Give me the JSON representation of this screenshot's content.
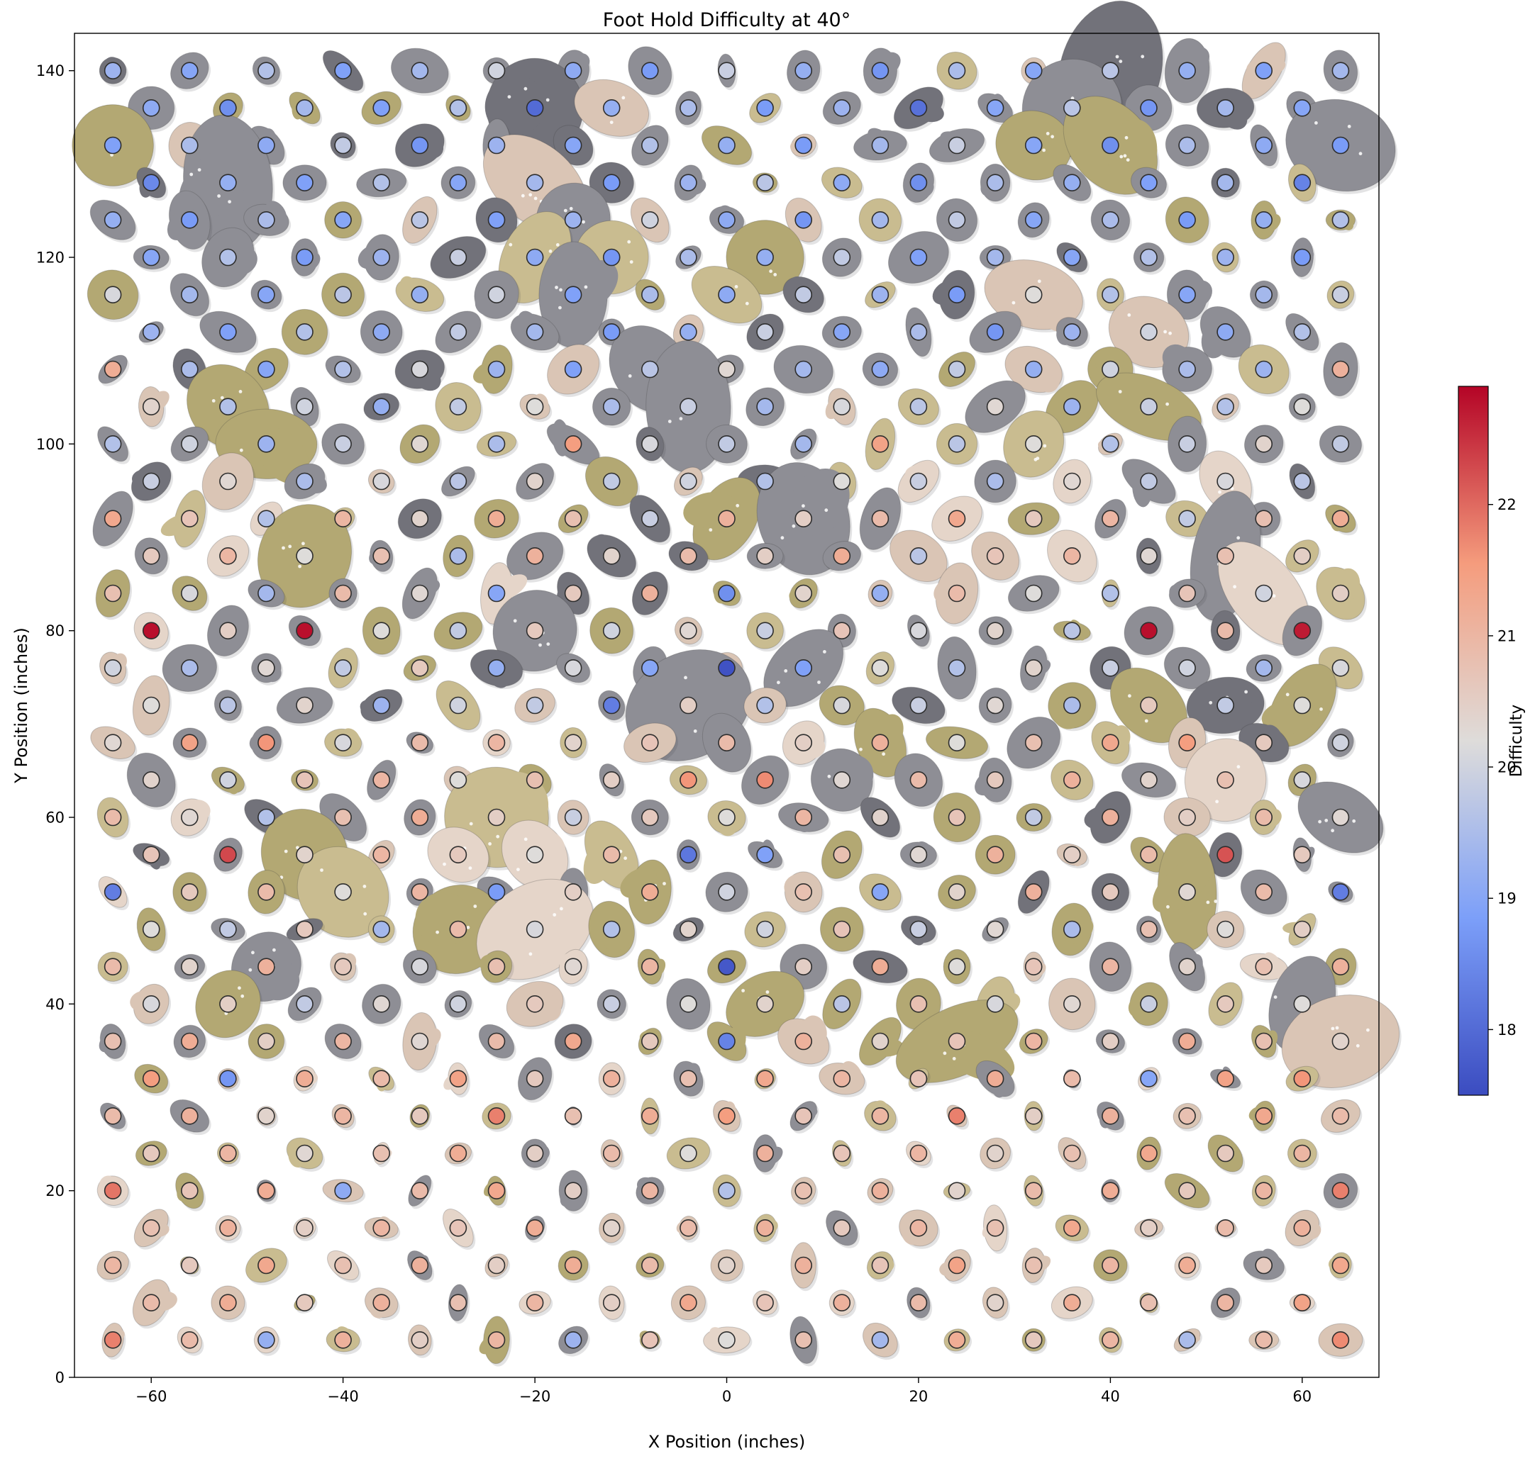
{
  "chart_data": {
    "type": "scatter",
    "title": "Foot Hold Difficulty at 40°",
    "xlabel": "X Position (inches)",
    "ylabel": "Y Position (inches)",
    "xlim": [
      -68,
      68
    ],
    "ylim": [
      0,
      144
    ],
    "x_ticks": [
      -60,
      -40,
      -20,
      0,
      20,
      40,
      60
    ],
    "y_ticks": [
      0,
      20,
      40,
      60,
      80,
      100,
      120,
      140
    ],
    "grid": false,
    "legend_position": "none",
    "colorbar": {
      "label": "Difficulty",
      "ticks": [
        18,
        19,
        20,
        21,
        22
      ],
      "vmin": 17.5,
      "vmax": 22.9
    },
    "colormap": {
      "name": "coolwarm",
      "stops": [
        [
          0,
          "#3b4cc0"
        ],
        [
          0.25,
          "#7c9ff9"
        ],
        [
          0.5,
          "#dedcda"
        ],
        [
          0.75,
          "#f59c7d"
        ],
        [
          1,
          "#b40426"
        ]
      ]
    },
    "hold_colors": [
      "#8e8e95",
      "#72727a",
      "#b3a873",
      "#c9bc90",
      "#dac5b5",
      "#e5d5c9"
    ],
    "rows": [
      {
        "y": 140,
        "x_start": -64,
        "x_step": 8,
        "difficulty": [
          19.3,
          19.0,
          19.6,
          18.9,
          19.4,
          20.0,
          19.1,
          18.8,
          19.9,
          19.2,
          18.7,
          19.5,
          19.0,
          19.7,
          19.2,
          18.9,
          19.4
        ]
      },
      {
        "y": 136,
        "x_start": -60,
        "x_step": 8,
        "difficulty": [
          19.1,
          18.6,
          19.4,
          18.9,
          19.6,
          18.0,
          19.2,
          19.5,
          18.8,
          19.3,
          18.1,
          19.0,
          19.7,
          18.7,
          19.4,
          19.0
        ]
      },
      {
        "y": 132,
        "x_start": -64,
        "x_step": 8,
        "difficulty": [
          18.9,
          19.5,
          19.1,
          19.8,
          18.7,
          19.3,
          19.0,
          19.6,
          19.2,
          18.8,
          19.4,
          19.9,
          19.0,
          18.6,
          19.5,
          19.1,
          18.8
        ]
      },
      {
        "y": 128,
        "x_start": -60,
        "x_step": 8,
        "difficulty": [
          18.5,
          19.2,
          18.9,
          19.6,
          19.0,
          19.4,
          18.8,
          19.3,
          19.7,
          19.1,
          18.6,
          19.5,
          19.2,
          18.9,
          19.4,
          18.4
        ]
      },
      {
        "y": 124,
        "x_start": -64,
        "x_step": 8,
        "difficulty": [
          19.2,
          18.8,
          19.5,
          19.0,
          19.7,
          18.9,
          19.3,
          20.0,
          19.1,
          18.7,
          19.4,
          19.8,
          19.0,
          19.5,
          18.8,
          19.2,
          19.6
        ]
      },
      {
        "y": 120,
        "x_start": -60,
        "x_step": 8,
        "difficulty": [
          19.0,
          19.6,
          18.8,
          19.3,
          19.9,
          19.1,
          18.7,
          19.5,
          19.2,
          19.8,
          18.9,
          19.4,
          19.0,
          19.6,
          19.3,
          18.8
        ]
      },
      {
        "y": 116,
        "x_start": -64,
        "x_step": 8,
        "difficulty": [
          20.1,
          19.4,
          19.0,
          19.7,
          19.2,
          20.0,
          18.9,
          19.5,
          19.1,
          19.8,
          19.3,
          18.8,
          20.2,
          19.6,
          19.0,
          19.4,
          19.9
        ]
      },
      {
        "y": 112,
        "x_start": -60,
        "x_step": 8,
        "difficulty": [
          19.3,
          18.9,
          19.6,
          19.1,
          19.8,
          19.4,
          18.8,
          19.2,
          19.9,
          19.0,
          19.5,
          18.7,
          19.3,
          20.0,
          19.1,
          19.6
        ]
      },
      {
        "y": 108,
        "x_start": -64,
        "x_step": 8,
        "difficulty": [
          21.2,
          19.5,
          19.0,
          19.6,
          20.1,
          19.3,
          18.9,
          19.7,
          20.3,
          19.4,
          19.1,
          19.8,
          19.2,
          20.0,
          19.5,
          19.3,
          21.1
        ]
      },
      {
        "y": 104,
        "x_start": -60,
        "x_step": 8,
        "difficulty": [
          20.4,
          19.6,
          20.0,
          19.2,
          19.8,
          20.2,
          19.5,
          19.9,
          19.4,
          20.1,
          19.7,
          20.3,
          19.3,
          19.9,
          19.6,
          20.2
        ]
      },
      {
        "y": 100,
        "x_start": -64,
        "x_step": 8,
        "difficulty": [
          19.6,
          20.0,
          19.3,
          19.9,
          20.3,
          19.5,
          21.5,
          20.1,
          19.8,
          19.4,
          21.4,
          19.7,
          20.2,
          19.6,
          19.9,
          20.4,
          19.8
        ]
      },
      {
        "y": 96,
        "x_start": -60,
        "x_step": 8,
        "difficulty": [
          19.9,
          20.3,
          19.5,
          20.1,
          19.7,
          20.4,
          19.8,
          20.0,
          19.6,
          20.2,
          19.9,
          19.5,
          20.3,
          19.8,
          20.1,
          19.7
        ]
      },
      {
        "y": 92,
        "x_start": -64,
        "x_step": 8,
        "difficulty": [
          21.3,
          20.7,
          19.6,
          21.0,
          20.4,
          21.2,
          20.8,
          19.9,
          21.1,
          20.5,
          20.9,
          21.3,
          20.6,
          21.0,
          19.8,
          20.8,
          21.2
        ]
      },
      {
        "y": 88,
        "x_start": -60,
        "x_step": 8,
        "difficulty": [
          20.6,
          21.0,
          20.2,
          20.8,
          19.5,
          21.1,
          20.4,
          20.9,
          20.5,
          21.2,
          19.7,
          20.7,
          21.0,
          20.3,
          20.8,
          20.5
        ]
      },
      {
        "y": 84,
        "x_start": -64,
        "x_step": 8,
        "difficulty": [
          20.8,
          20.1,
          19.4,
          20.9,
          20.3,
          19.0,
          20.6,
          21.1,
          18.6,
          20.4,
          19.2,
          20.9,
          20.2,
          19.6,
          20.7,
          20.0,
          20.5
        ]
      },
      {
        "y": 80,
        "x_start": -60,
        "x_step": 8,
        "difficulty": [
          22.8,
          20.5,
          22.8,
          20.2,
          19.8,
          20.6,
          20.0,
          20.3,
          19.9,
          20.7,
          20.1,
          20.4,
          19.7,
          22.8,
          20.9,
          22.7
        ]
      },
      {
        "y": 76,
        "x_start": -64,
        "x_step": 8,
        "difficulty": [
          20.0,
          19.5,
          20.3,
          19.8,
          20.6,
          19.2,
          20.1,
          19.0,
          17.6,
          18.9,
          20.2,
          19.6,
          20.4,
          19.9,
          20.0,
          19.4,
          20.1
        ]
      },
      {
        "y": 72,
        "x_start": -60,
        "x_step": 8,
        "difficulty": [
          20.2,
          19.7,
          20.4,
          19.3,
          20.0,
          19.8,
          18.3,
          20.5,
          19.6,
          20.1,
          19.9,
          20.3,
          19.5,
          20.6,
          19.8,
          20.2
        ]
      },
      {
        "y": 68,
        "x_start": -64,
        "x_step": 8,
        "difficulty": [
          20.3,
          21.4,
          21.6,
          20.1,
          20.9,
          21.0,
          20.4,
          20.7,
          20.9,
          20.5,
          21.1,
          20.2,
          20.8,
          21.3,
          21.5,
          20.6,
          20.0
        ]
      },
      {
        "y": 64,
        "x_start": -60,
        "x_step": 8,
        "difficulty": [
          20.4,
          20.0,
          20.7,
          21.0,
          20.2,
          20.8,
          20.5,
          21.6,
          21.7,
          20.3,
          20.9,
          20.6,
          21.1,
          20.4,
          20.8,
          20.1
        ]
      },
      {
        "y": 60,
        "x_start": -64,
        "x_step": 8,
        "difficulty": [
          20.9,
          20.3,
          19.6,
          20.8,
          21.2,
          20.5,
          19.9,
          20.6,
          20.2,
          21.0,
          20.4,
          20.7,
          19.8,
          21.1,
          20.5,
          20.9,
          20.3
        ]
      },
      {
        "y": 56,
        "x_start": -60,
        "x_step": 8,
        "difficulty": [
          20.7,
          22.3,
          20.4,
          21.0,
          20.6,
          20.2,
          20.9,
          18.2,
          18.9,
          20.8,
          20.3,
          21.1,
          20.5,
          20.9,
          22.2,
          20.6
        ]
      },
      {
        "y": 52,
        "x_start": -64,
        "x_step": 8,
        "difficulty": [
          18.3,
          20.6,
          20.9,
          20.2,
          21.0,
          18.8,
          20.5,
          21.2,
          20.0,
          20.8,
          19.0,
          20.4,
          21.1,
          20.6,
          20.3,
          20.9,
          18.3
        ]
      },
      {
        "y": 48,
        "x_start": -60,
        "x_step": 8,
        "difficulty": [
          20.2,
          19.8,
          20.6,
          19.4,
          20.9,
          20.1,
          19.6,
          20.4,
          20.0,
          20.7,
          19.9,
          20.3,
          19.5,
          20.8,
          20.2,
          20.5
        ]
      },
      {
        "y": 44,
        "x_start": -64,
        "x_step": 8,
        "difficulty": [
          20.9,
          20.4,
          21.1,
          20.6,
          20.1,
          20.8,
          20.3,
          21.0,
          17.7,
          20.5,
          21.2,
          20.2,
          20.7,
          21.0,
          20.4,
          20.8,
          21.1
        ]
      },
      {
        "y": 40,
        "x_start": -60,
        "x_step": 8,
        "difficulty": [
          20.1,
          20.5,
          19.8,
          20.3,
          20.0,
          20.6,
          19.9,
          20.2,
          20.4,
          19.7,
          20.8,
          20.1,
          20.3,
          19.9,
          20.6,
          20.2
        ]
      },
      {
        "y": 36,
        "x_start": -64,
        "x_step": 8,
        "difficulty": [
          20.8,
          21.2,
          20.5,
          21.0,
          20.3,
          20.9,
          21.3,
          20.6,
          18.4,
          21.1,
          20.4,
          20.7,
          21.0,
          20.5,
          21.2,
          20.8,
          20.4
        ]
      },
      {
        "y": 32,
        "x_start": -60,
        "x_step": 8,
        "difficulty": [
          21.5,
          18.7,
          21.2,
          20.9,
          21.4,
          20.6,
          21.1,
          20.8,
          21.3,
          21.0,
          20.7,
          21.2,
          20.9,
          19.0,
          21.4,
          21.6
        ]
      },
      {
        "y": 28,
        "x_start": -64,
        "x_step": 8,
        "difficulty": [
          20.9,
          21.1,
          20.4,
          21.0,
          20.6,
          21.8,
          20.8,
          21.2,
          21.5,
          20.7,
          21.0,
          21.8,
          20.5,
          21.1,
          20.8,
          21.3,
          20.9
        ]
      },
      {
        "y": 24,
        "x_start": -60,
        "x_step": 8,
        "difficulty": [
          20.6,
          21.0,
          20.3,
          20.8,
          21.2,
          20.5,
          20.9,
          20.2,
          21.1,
          20.7,
          21.0,
          20.4,
          20.8,
          21.3,
          20.6,
          21.0
        ]
      },
      {
        "y": 20,
        "x_start": -64,
        "x_step": 8,
        "difficulty": [
          21.9,
          20.7,
          21.2,
          19.1,
          20.9,
          21.3,
          20.5,
          21.0,
          19.6,
          20.8,
          21.1,
          20.4,
          20.9,
          21.2,
          20.6,
          21.0,
          21.8
        ]
      },
      {
        "y": 16,
        "x_start": -60,
        "x_step": 8,
        "difficulty": [
          20.8,
          21.1,
          20.5,
          21.0,
          20.7,
          21.2,
          20.4,
          20.9,
          21.1,
          20.6,
          21.0,
          20.8,
          21.3,
          20.5,
          20.9,
          21.1
        ]
      },
      {
        "y": 12,
        "x_start": -64,
        "x_step": 8,
        "difficulty": [
          21.0,
          20.6,
          21.3,
          20.8,
          21.1,
          20.5,
          21.2,
          20.9,
          20.4,
          21.1,
          20.7,
          21.4,
          20.8,
          21.0,
          21.2,
          20.6,
          21.3
        ]
      },
      {
        "y": 8,
        "x_start": -60,
        "x_step": 8,
        "difficulty": [
          20.9,
          21.2,
          20.6,
          21.1,
          20.8,
          21.0,
          20.5,
          21.3,
          20.7,
          21.1,
          20.9,
          20.4,
          21.2,
          20.8,
          21.0,
          21.4
        ]
      },
      {
        "y": 4,
        "x_start": -64,
        "x_step": 8,
        "difficulty": [
          21.8,
          20.9,
          19.2,
          21.1,
          20.5,
          21.0,
          19.3,
          20.7,
          20.2,
          20.8,
          19.4,
          21.2,
          20.6,
          21.0,
          19.5,
          20.9,
          21.7
        ]
      }
    ]
  }
}
